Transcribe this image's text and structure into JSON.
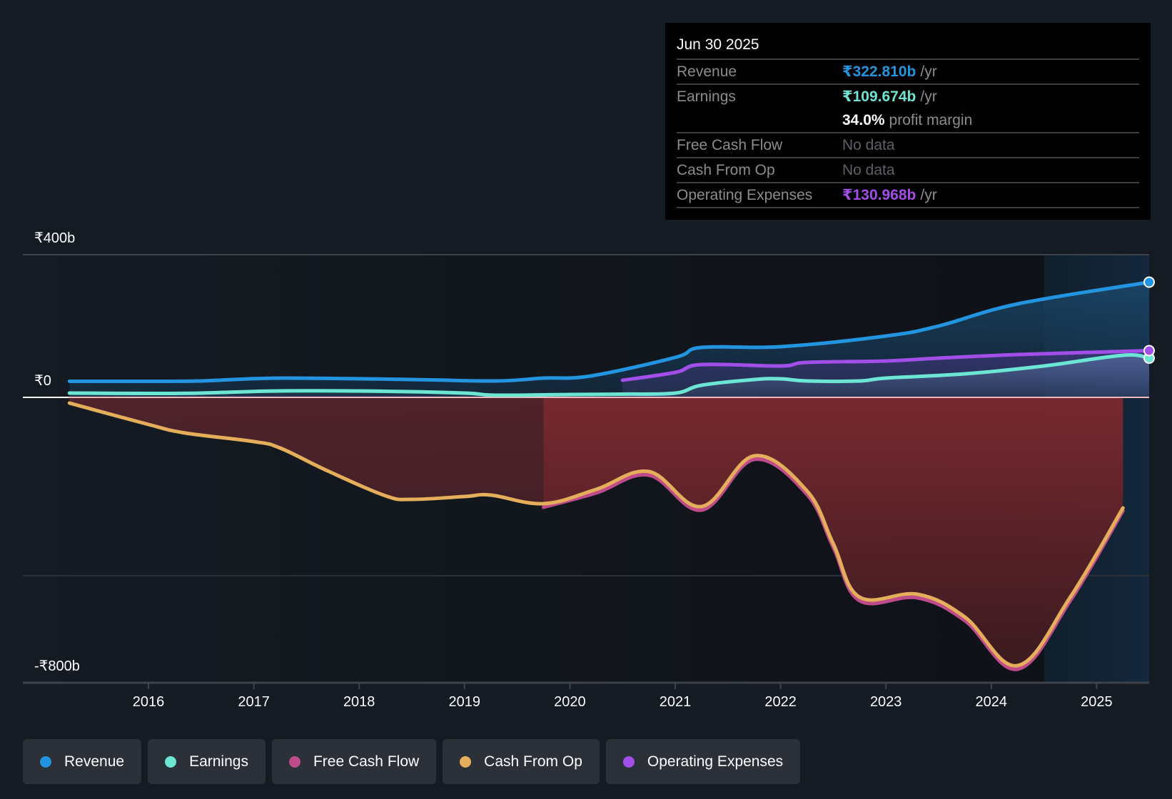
{
  "tooltip": {
    "date": "Jun 30 2025",
    "rows": [
      {
        "label": "Revenue",
        "value": "₹322.810b",
        "unit": "/yr",
        "color": "#2394df"
      },
      {
        "label": "Earnings",
        "value": "₹109.674b",
        "unit": "/yr",
        "color": "#6ce5d4"
      },
      {
        "label": "",
        "value": "34.0%",
        "unit": "profit margin"
      },
      {
        "label": "Free Cash Flow",
        "value": "No data"
      },
      {
        "label": "Cash From Op",
        "value": "No data"
      },
      {
        "label": "Operating Expenses",
        "value": "₹130.968b",
        "unit": "/yr",
        "color": "#a24ee8"
      }
    ]
  },
  "legend": [
    {
      "label": "Revenue",
      "color": "#2394df"
    },
    {
      "label": "Earnings",
      "color": "#6ce5d4"
    },
    {
      "label": "Free Cash Flow",
      "color": "#c04b8b"
    },
    {
      "label": "Cash From Op",
      "color": "#e5ae5a"
    },
    {
      "label": "Operating Expenses",
      "color": "#a24ee8"
    }
  ],
  "chart_data": {
    "type": "line",
    "title": "",
    "xlabel": "",
    "ylabel": "",
    "currency_unit": "₹ billions",
    "y_tick_labels": [
      "₹400b",
      "₹0",
      "-₹800b"
    ],
    "y_ticks": [
      400,
      0,
      -800
    ],
    "ylim": [
      -800,
      400
    ],
    "x_tick_labels": [
      "2016",
      "2017",
      "2018",
      "2019",
      "2020",
      "2021",
      "2022",
      "2023",
      "2024",
      "2025"
    ],
    "x_ticks": [
      2016,
      2017,
      2018,
      2019,
      2020,
      2021,
      2022,
      2023,
      2024,
      2025
    ],
    "xlim": [
      2014.83,
      2025.5
    ],
    "forecast_region_start": 2024.5,
    "grid": true,
    "legend_position": "bottom",
    "series": [
      {
        "name": "Revenue",
        "color": "#2394df",
        "end_marker": true,
        "x": [
          2015.25,
          2016.0,
          2016.5,
          2017.25,
          2018.5,
          2019.3,
          2019.75,
          2020.2,
          2021.0,
          2021.25,
          2022.0,
          2023.0,
          2023.5,
          2024.25,
          2025.5
        ],
        "y": [
          45,
          45,
          46,
          54,
          50,
          46,
          54,
          60,
          112,
          140,
          142,
          172,
          200,
          262,
          323
        ]
      },
      {
        "name": "Earnings",
        "color": "#6ce5d4",
        "end_marker": true,
        "x": [
          2015.25,
          2016.0,
          2016.5,
          2017.25,
          2018.25,
          2019.0,
          2019.3,
          2020.0,
          2020.5,
          2021.0,
          2021.25,
          2021.75,
          2022.0,
          2022.25,
          2022.75,
          2023.0,
          2023.75,
          2024.5,
          2025.25,
          2025.5
        ],
        "y": [
          12,
          11,
          12,
          18,
          17,
          12,
          6,
          8,
          9,
          12,
          34,
          50,
          52,
          46,
          46,
          54,
          66,
          88,
          118,
          110
        ]
      },
      {
        "name": "Free Cash Flow",
        "color": "#c04b8b",
        "end_marker": false,
        "x": [
          2019.75,
          2020.25,
          2020.75,
          2021.25,
          2021.75,
          2022.25,
          2022.5,
          2022.75,
          2023.3,
          2023.75,
          2024.25,
          2024.75,
          2025.25
        ],
        "y": [
          -304,
          -264,
          -214,
          -312,
          -170,
          -268,
          -416,
          -566,
          -558,
          -622,
          -758,
          -566,
          -314
        ]
      },
      {
        "name": "Cash From Op",
        "color": "#e5ae5a",
        "end_marker": false,
        "x": [
          2015.25,
          2016.0,
          2016.35,
          2017.0,
          2017.25,
          2017.7,
          2018.25,
          2018.5,
          2019.0,
          2019.25,
          2019.75,
          2020.25,
          2020.75,
          2021.25,
          2021.75,
          2022.25,
          2022.5,
          2022.75,
          2023.3,
          2023.75,
          2024.25,
          2024.75,
          2025.25
        ],
        "y": [
          -16,
          -76,
          -100,
          -124,
          -142,
          -206,
          -276,
          -286,
          -278,
          -274,
          -298,
          -258,
          -208,
          -306,
          -164,
          -262,
          -410,
          -560,
          -552,
          -616,
          -752,
          -560,
          -310
        ]
      },
      {
        "name": "Operating Expenses",
        "color": "#a24ee8",
        "end_marker": true,
        "x": [
          2020.5,
          2021.0,
          2021.25,
          2022.0,
          2022.25,
          2023.0,
          2023.5,
          2024.25,
          2025.5
        ],
        "y": [
          48,
          70,
          92,
          88,
          98,
          102,
          110,
          120,
          131
        ]
      }
    ]
  }
}
